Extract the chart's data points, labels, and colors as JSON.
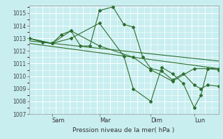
{
  "xlabel": "Pression niveau de la mer( hPa )",
  "bg_color": "#c8eef0",
  "grid_major_color": "#ffffff",
  "grid_minor_color": "#daf4f4",
  "line_color": "#2d6e2d",
  "ylim": [
    1007,
    1015.6
  ],
  "xlim": [
    0,
    7.0
  ],
  "yticks": [
    1007,
    1008,
    1009,
    1010,
    1011,
    1012,
    1013,
    1014,
    1015
  ],
  "x_tick_labels": [
    "Sam",
    "Mar",
    "Dim",
    "Lun"
  ],
  "x_tick_positions": [
    0.85,
    2.6,
    4.5,
    6.1
  ],
  "series1_x": [
    0.0,
    0.5,
    0.85,
    1.2,
    1.55,
    1.9,
    2.25,
    2.6,
    3.1,
    3.5,
    3.85,
    4.2,
    4.5,
    4.9,
    5.3,
    5.7,
    6.1,
    6.35,
    6.6,
    7.0
  ],
  "series1_y": [
    1013.0,
    1012.7,
    1012.6,
    1013.3,
    1013.6,
    1012.4,
    1012.4,
    1015.2,
    1015.5,
    1014.1,
    1013.9,
    1011.5,
    1010.6,
    1010.4,
    1009.7,
    1010.2,
    1009.3,
    1009.0,
    1009.3,
    1009.2
  ],
  "series2_x": [
    0.0,
    0.85,
    1.55,
    2.6,
    3.85,
    4.5,
    5.3,
    6.1,
    6.6,
    7.0
  ],
  "series2_y": [
    1013.0,
    1012.6,
    1013.6,
    1012.4,
    1011.5,
    1010.5,
    1009.6,
    1010.6,
    1010.6,
    1010.5
  ],
  "series3_x": [
    0.0,
    7.0
  ],
  "series3_y": [
    1012.8,
    1011.2
  ],
  "series4_x": [
    0.0,
    7.0
  ],
  "series4_y": [
    1012.6,
    1010.6
  ],
  "series5_x": [
    0.0,
    0.85,
    1.55,
    2.6,
    3.5,
    3.85,
    4.5,
    4.9,
    5.3,
    5.7,
    6.1,
    6.35,
    6.6,
    7.0
  ],
  "series5_y": [
    1013.0,
    1012.6,
    1013.0,
    1014.2,
    1011.6,
    1009.0,
    1008.0,
    1010.7,
    1010.2,
    1009.4,
    1007.5,
    1008.5,
    1010.6,
    1010.6
  ]
}
